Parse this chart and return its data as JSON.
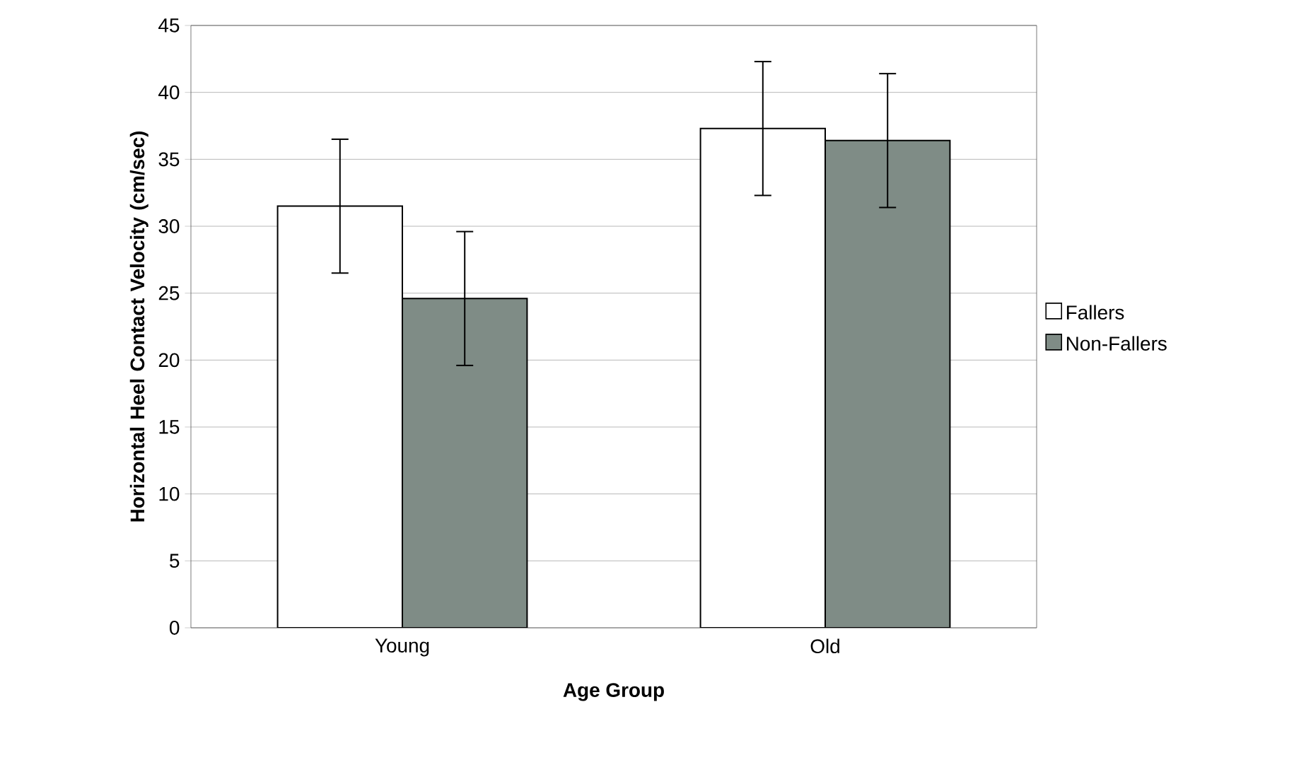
{
  "chart_data": {
    "type": "bar",
    "xlabel": "Age Group",
    "ylabel": "Horizontal Heel Contact Velocity (cm/sec)",
    "categories": [
      "Young",
      "Old"
    ],
    "series": [
      {
        "name": "Fallers",
        "color": "#ffffff",
        "values": [
          31.5,
          37.3
        ],
        "errors": [
          5,
          5
        ]
      },
      {
        "name": "Non-Fallers",
        "color": "#7f8c86",
        "values": [
          24.6,
          36.4
        ],
        "errors": [
          5,
          5
        ]
      }
    ],
    "ylim": [
      0,
      45
    ],
    "yticks": [
      0,
      5,
      10,
      15,
      20,
      25,
      30,
      35,
      40,
      45
    ],
    "grid": "y",
    "legend": "right"
  }
}
